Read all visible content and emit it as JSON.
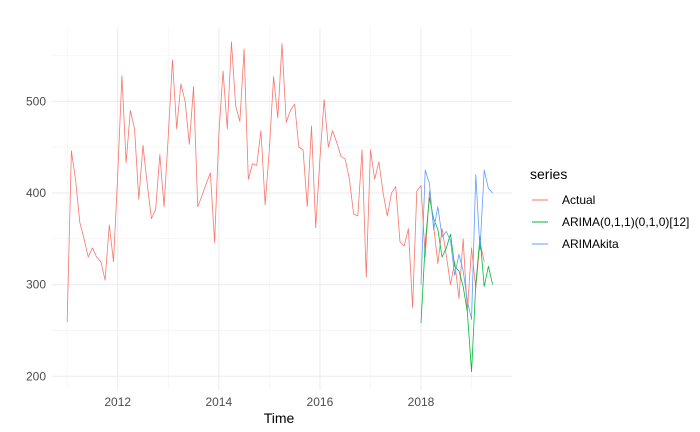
{
  "chart_data": {
    "type": "line",
    "title": "",
    "xlabel": "Time",
    "ylabel": "",
    "xlim": [
      2010.7,
      2019.8
    ],
    "ylim": [
      185,
      580
    ],
    "x_ticks": [
      2012,
      2014,
      2016,
      2018
    ],
    "x_tick_labels": [
      "2012",
      "2014",
      "2016",
      "2018"
    ],
    "y_ticks": [
      200,
      300,
      400,
      500
    ],
    "y_tick_labels": [
      "200",
      "300",
      "400",
      "500"
    ],
    "grid": true,
    "legend": {
      "title": "series",
      "position": "right",
      "entries": [
        "Actual",
        "ARIMA(0,1,1)(0,1,0)[12]",
        "ARIMAkita"
      ]
    },
    "series": [
      {
        "name": "Actual",
        "color": "#F8766D",
        "start": [
          2011,
          1
        ],
        "frequency": 12,
        "values": [
          259,
          446,
          414,
          368,
          350,
          330,
          340,
          330,
          325,
          305,
          365,
          325,
          420,
          528,
          433,
          490,
          470,
          393,
          452,
          410,
          372,
          382,
          442,
          385,
          462,
          545,
          470,
          519,
          500,
          453,
          516,
          385,
          397,
          410,
          422,
          346,
          463,
          533,
          470,
          565,
          495,
          478,
          557,
          415,
          432,
          430,
          468,
          387,
          448,
          527,
          482,
          563,
          477,
          490,
          497,
          450,
          447,
          385,
          473,
          362,
          437,
          502,
          450,
          468,
          455,
          440,
          437,
          415,
          377,
          375,
          447,
          308,
          447,
          415,
          434,
          400,
          375,
          400,
          407,
          347,
          342,
          361,
          275,
          402,
          408,
          330,
          402,
          364,
          323,
          361,
          332,
          300,
          325,
          285,
          350,
          271,
          340,
          296,
          347,
          325
        ]
      },
      {
        "name": "ARIMA(0,1,1)(0,1,0)[12]",
        "color": "#00BA38",
        "start": [
          2018,
          1
        ],
        "frequency": 12,
        "values": [
          258,
          345,
          395,
          372,
          360,
          330,
          340,
          355,
          320,
          315,
          298,
          270,
          205,
          300,
          352,
          298,
          320,
          300
        ]
      },
      {
        "name": "ARIMAkita",
        "color": "#619CFF",
        "start": [
          2018,
          1
        ],
        "frequency": 12,
        "values": [
          300,
          425,
          410,
          360,
          385,
          352,
          358,
          348,
          310,
          333,
          315,
          282,
          262,
          420,
          338,
          425,
          405,
          400
        ]
      }
    ]
  }
}
